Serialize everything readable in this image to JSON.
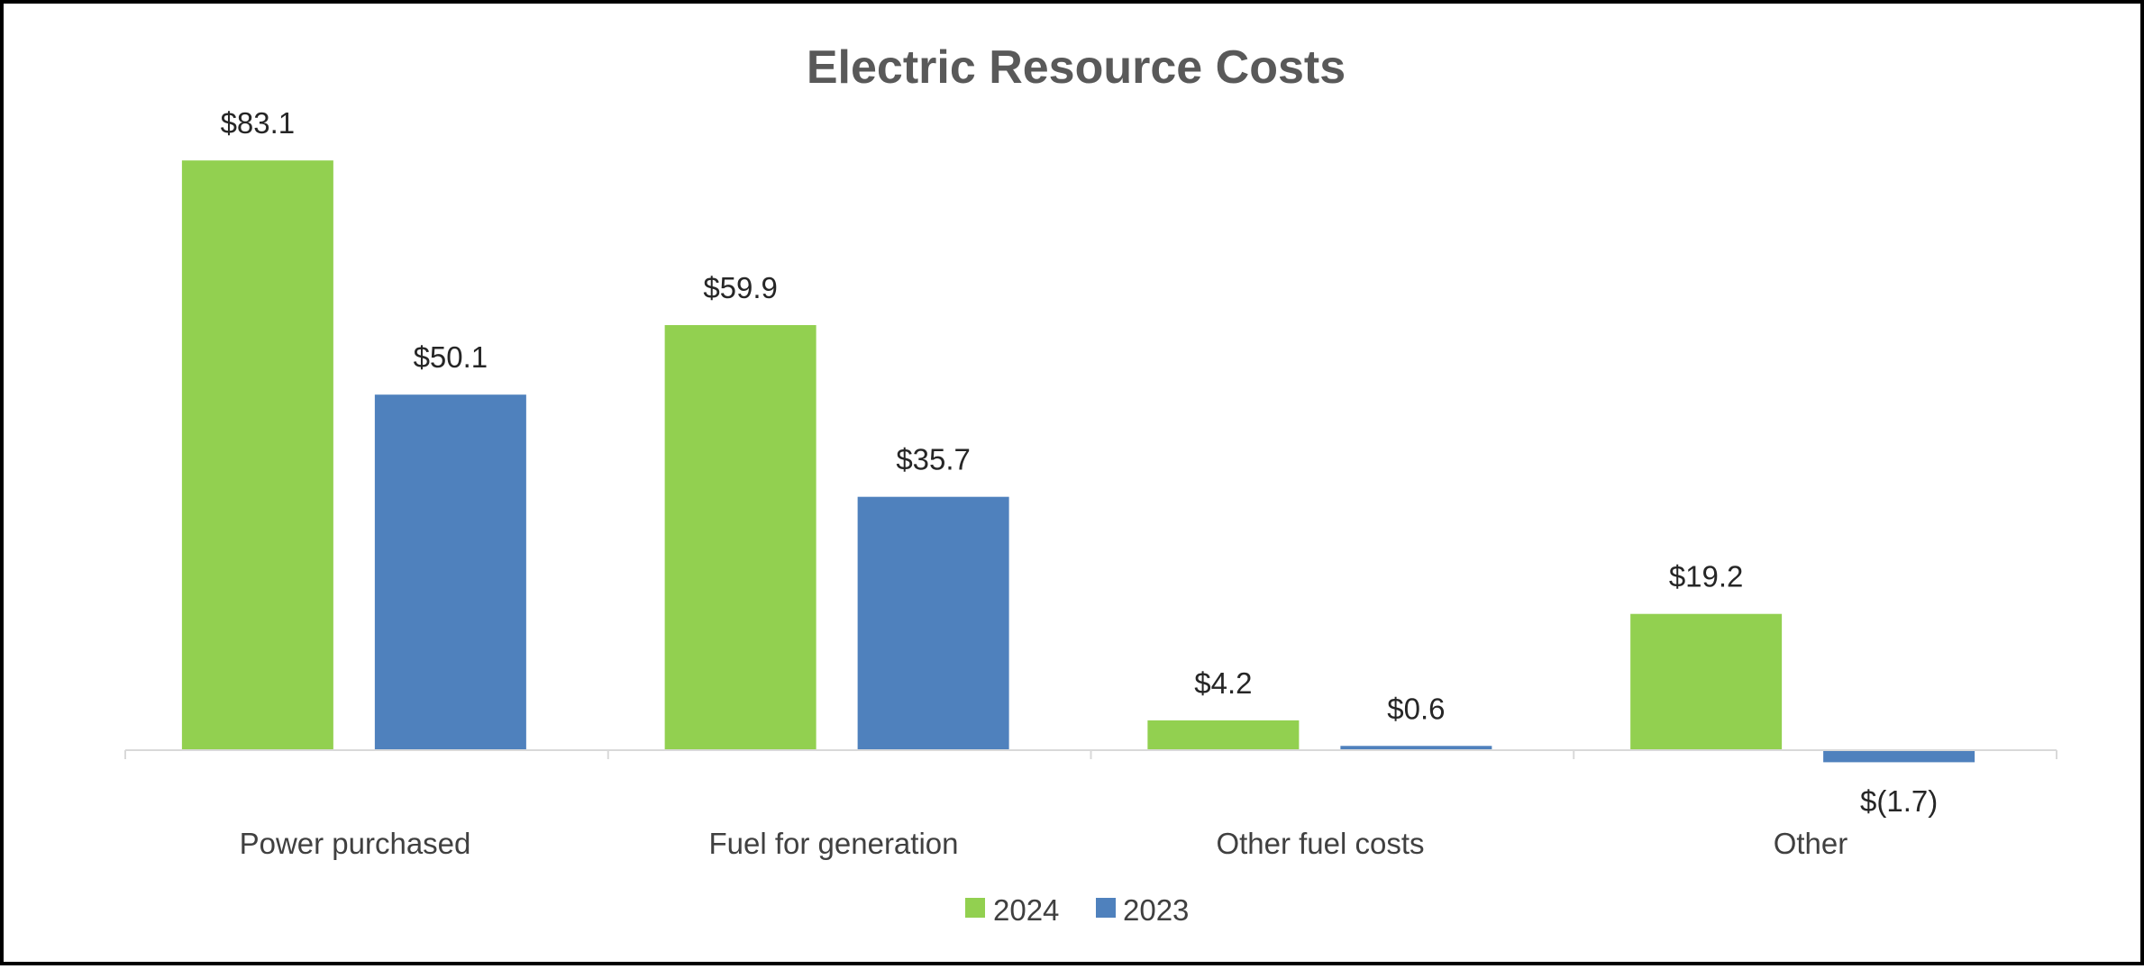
{
  "chart_data": {
    "type": "bar",
    "title": "Electric Resource Costs",
    "categories": [
      "Power purchased",
      "Fuel for generation",
      "Other fuel costs",
      "Other"
    ],
    "series": [
      {
        "name": "2024",
        "color": "#92D050",
        "values": [
          83.1,
          59.9,
          4.2,
          19.2
        ],
        "labels": [
          "$83.1",
          "$59.9",
          "$4.2",
          "$19.2"
        ]
      },
      {
        "name": "2023",
        "color": "#4F81BD",
        "values": [
          50.1,
          35.7,
          0.6,
          -1.7
        ],
        "labels": [
          "$50.1",
          "$35.7",
          "$0.6",
          "$(1.7)"
        ]
      }
    ],
    "xlabel": "",
    "ylabel": "",
    "ylim": [
      -5,
      90
    ],
    "grid": false,
    "legend": "bottom-center"
  }
}
